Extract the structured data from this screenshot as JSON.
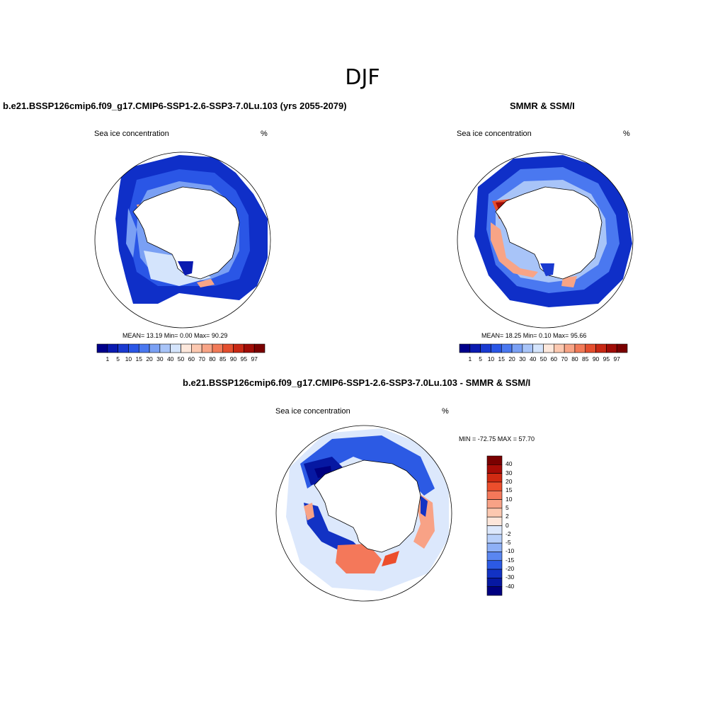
{
  "title": "DJF",
  "panels": [
    {
      "id": "model",
      "heading": "b.e21.BSSP126cmip6.f09_g17.CMIP6-SSP1-2.6-SSP3-7.0Lu.103 (yrs 2055-2079)",
      "subtitle": "Sea ice concentration",
      "units": "%",
      "stats": "MEAN=  13.19  Min=   0.00  Max=  90.29"
    },
    {
      "id": "obs",
      "heading": "SMMR & SSM/I",
      "subtitle": "Sea ice concentration",
      "units": "%",
      "stats": "MEAN=  18.25  Min=   0.10  Max=  95.66"
    },
    {
      "id": "diff",
      "heading": "b.e21.BSSP126cmip6.f09_g17.CMIP6-SSP1-2.6-SSP3-7.0Lu.103 - SMMR & SSM/I",
      "subtitle": "Sea ice concentration",
      "units": "%",
      "stats": "MIN = -72.75 MAX =  57.70"
    }
  ],
  "colorbar_abs": {
    "labels": [
      "1",
      "5",
      "10",
      "15",
      "20",
      "30",
      "40",
      "50",
      "60",
      "70",
      "80",
      "85",
      "90",
      "95",
      "97"
    ],
    "colors": [
      "#00008b",
      "#0a1ab0",
      "#1a3ad0",
      "#2a56e6",
      "#4a78f0",
      "#7aa0f4",
      "#a8c4f8",
      "#d4e4fc",
      "#fde8dc",
      "#fcc8b0",
      "#f8a486",
      "#f27a58",
      "#e44e2e",
      "#c82814",
      "#a00c06",
      "#7a0000"
    ]
  },
  "colorbar_diff": {
    "labels": [
      "40",
      "30",
      "20",
      "15",
      "10",
      "5",
      "2",
      "0",
      "-2",
      "-5",
      "-10",
      "-15",
      "-20",
      "-30",
      "-40"
    ],
    "colors": [
      "#7a0000",
      "#a80c06",
      "#d02a12",
      "#ec4e2c",
      "#f4785a",
      "#f8a286",
      "#fcc8b0",
      "#fde6da",
      "#dce8fc",
      "#b8d0fa",
      "#8eb0f6",
      "#5a86f0",
      "#2c5ae4",
      "#1232c4",
      "#0618a2",
      "#000080"
    ]
  }
}
